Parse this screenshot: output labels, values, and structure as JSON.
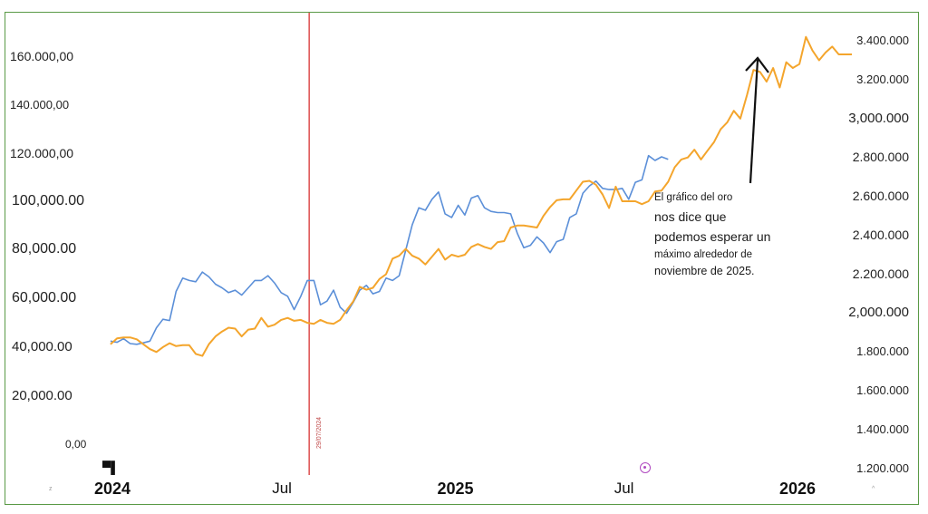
{
  "chart_data": {
    "type": "line",
    "annotation": [
      "El gráfico del oro",
      "nos dice que",
      "podemos esperar un",
      "máximo alrededor de",
      "noviembre de 2025."
    ],
    "marker_label": "29/07/2024",
    "marker_date": "2024-07-29",
    "x_ticks": [
      {
        "label": "2024",
        "date": "2024-01-01",
        "bold": true
      },
      {
        "label": "Jul",
        "date": "2024-07-01",
        "bold": false
      },
      {
        "label": "2025",
        "date": "2025-01-01",
        "bold": true
      },
      {
        "label": "Jul",
        "date": "2025-07-01",
        "bold": false
      },
      {
        "label": "2026",
        "date": "2026-01-01",
        "bold": true
      }
    ],
    "left_ticks": [
      {
        "label": "160.000,00",
        "value": 160000,
        "size": 14
      },
      {
        "label": "140.000,00",
        "value": 140000,
        "size": 13
      },
      {
        "label": "120.000,00",
        "value": 120000,
        "size": 14
      },
      {
        "label": "100,000.00",
        "value": 100000,
        "size": 16
      },
      {
        "label": "80,000.00",
        "value": 80000,
        "size": 16
      },
      {
        "label": "60,000.00",
        "value": 60000,
        "size": 16
      },
      {
        "label": "40,000.00",
        "value": 40000,
        "size": 15
      },
      {
        "label": "20,000.00",
        "value": 20000,
        "size": 15
      },
      {
        "label": "0,00",
        "value": 0,
        "size": 12
      }
    ],
    "right_ticks": [
      {
        "label": "3.400.000",
        "value": 3400000,
        "size": 13
      },
      {
        "label": "3.200.000",
        "value": 3200000,
        "size": 13
      },
      {
        "label": "3,000.000",
        "value": 3000000,
        "size": 15
      },
      {
        "label": "2.800.000",
        "value": 2800000,
        "size": 14
      },
      {
        "label": "2.600.000",
        "value": 2600000,
        "size": 14
      },
      {
        "label": "2.400.000",
        "value": 2400000,
        "size": 14
      },
      {
        "label": "2.200.000",
        "value": 2200000,
        "size": 14
      },
      {
        "label": "2,000.000",
        "value": 2000000,
        "size": 15
      },
      {
        "label": "1.800.000",
        "value": 1800000,
        "size": 13
      },
      {
        "label": "1.600.000",
        "value": 1600000,
        "size": 13
      },
      {
        "label": "1.400.000",
        "value": 1400000,
        "size": 13
      },
      {
        "label": "1.200.000",
        "value": 1200000,
        "size": 13
      }
    ],
    "series": [
      {
        "axis": "left",
        "color": "#5b8fd8",
        "points": [
          [
            "2023-12-30",
            42500
          ],
          [
            "2024-01-06",
            42000
          ],
          [
            "2024-01-13",
            43500
          ],
          [
            "2024-01-20",
            41500
          ],
          [
            "2024-01-27",
            41200
          ],
          [
            "2024-02-03",
            41800
          ],
          [
            "2024-02-10",
            42500
          ],
          [
            "2024-02-17",
            48000
          ],
          [
            "2024-02-24",
            51500
          ],
          [
            "2024-03-02",
            51000
          ],
          [
            "2024-03-09",
            63000
          ],
          [
            "2024-03-16",
            68500
          ],
          [
            "2024-03-23",
            67500
          ],
          [
            "2024-03-30",
            67000
          ],
          [
            "2024-04-06",
            71000
          ],
          [
            "2024-04-13",
            69000
          ],
          [
            "2024-04-20",
            66000
          ],
          [
            "2024-04-27",
            64500
          ],
          [
            "2024-05-04",
            62500
          ],
          [
            "2024-05-11",
            63500
          ],
          [
            "2024-05-18",
            61500
          ],
          [
            "2024-05-25",
            64500
          ],
          [
            "2024-06-01",
            67500
          ],
          [
            "2024-06-08",
            67500
          ],
          [
            "2024-06-15",
            69500
          ],
          [
            "2024-06-22",
            66500
          ],
          [
            "2024-06-29",
            62500
          ],
          [
            "2024-07-06",
            61000
          ],
          [
            "2024-07-13",
            55500
          ],
          [
            "2024-07-20",
            61000
          ],
          [
            "2024-07-27",
            67500
          ],
          [
            "2024-08-03",
            67500
          ],
          [
            "2024-08-10",
            57500
          ],
          [
            "2024-08-17",
            59000
          ],
          [
            "2024-08-24",
            63500
          ],
          [
            "2024-08-31",
            56500
          ],
          [
            "2024-09-07",
            54000
          ],
          [
            "2024-09-14",
            58500
          ],
          [
            "2024-09-21",
            63500
          ],
          [
            "2024-09-28",
            65500
          ],
          [
            "2024-10-05",
            62000
          ],
          [
            "2024-10-12",
            63000
          ],
          [
            "2024-10-19",
            68500
          ],
          [
            "2024-10-26",
            67500
          ],
          [
            "2024-11-02",
            69500
          ],
          [
            "2024-11-09",
            80000
          ],
          [
            "2024-11-16",
            90500
          ],
          [
            "2024-11-23",
            97500
          ],
          [
            "2024-11-30",
            96500
          ],
          [
            "2024-12-07",
            101000
          ],
          [
            "2024-12-14",
            104000
          ],
          [
            "2024-12-21",
            95000
          ],
          [
            "2024-12-28",
            93500
          ],
          [
            "2025-01-04",
            98500
          ],
          [
            "2025-01-11",
            94500
          ],
          [
            "2025-01-18",
            101500
          ],
          [
            "2025-01-25",
            102500
          ],
          [
            "2025-02-01",
            97500
          ],
          [
            "2025-02-08",
            96000
          ],
          [
            "2025-02-15",
            95500
          ],
          [
            "2025-02-22",
            95500
          ],
          [
            "2025-03-01",
            95000
          ],
          [
            "2025-03-08",
            87000
          ],
          [
            "2025-03-15",
            81000
          ],
          [
            "2025-03-22",
            82000
          ],
          [
            "2025-03-29",
            85500
          ],
          [
            "2025-04-05",
            83000
          ],
          [
            "2025-04-12",
            79000
          ],
          [
            "2025-04-19",
            83500
          ],
          [
            "2025-04-26",
            84500
          ],
          [
            "2025-05-03",
            93500
          ],
          [
            "2025-05-10",
            95000
          ],
          [
            "2025-05-17",
            103500
          ],
          [
            "2025-05-24",
            106500
          ],
          [
            "2025-05-31",
            108500
          ],
          [
            "2025-06-07",
            105500
          ],
          [
            "2025-06-14",
            105000
          ],
          [
            "2025-06-21",
            105000
          ],
          [
            "2025-06-28",
            105500
          ],
          [
            "2025-07-05",
            101000
          ],
          [
            "2025-07-12",
            108000
          ],
          [
            "2025-07-19",
            109000
          ],
          [
            "2025-07-26",
            119000
          ],
          [
            "2025-08-02",
            117000
          ],
          [
            "2025-08-09",
            118500
          ],
          [
            "2025-08-16",
            117500
          ]
        ]
      },
      {
        "axis": "right",
        "color": "#f4a52c",
        "points": [
          [
            "2023-12-30",
            1840000
          ],
          [
            "2024-01-06",
            1870000
          ],
          [
            "2024-01-13",
            1875000
          ],
          [
            "2024-01-20",
            1875000
          ],
          [
            "2024-01-27",
            1865000
          ],
          [
            "2024-02-03",
            1840000
          ],
          [
            "2024-02-10",
            1815000
          ],
          [
            "2024-02-17",
            1800000
          ],
          [
            "2024-02-24",
            1825000
          ],
          [
            "2024-03-02",
            1845000
          ],
          [
            "2024-03-09",
            1830000
          ],
          [
            "2024-03-16",
            1835000
          ],
          [
            "2024-03-23",
            1835000
          ],
          [
            "2024-03-30",
            1790000
          ],
          [
            "2024-04-06",
            1780000
          ],
          [
            "2024-04-13",
            1840000
          ],
          [
            "2024-04-20",
            1880000
          ],
          [
            "2024-04-27",
            1905000
          ],
          [
            "2024-05-04",
            1925000
          ],
          [
            "2024-05-11",
            1920000
          ],
          [
            "2024-05-18",
            1880000
          ],
          [
            "2024-05-25",
            1915000
          ],
          [
            "2024-06-01",
            1920000
          ],
          [
            "2024-06-08",
            1975000
          ],
          [
            "2024-06-15",
            1930000
          ],
          [
            "2024-06-22",
            1940000
          ],
          [
            "2024-06-29",
            1965000
          ],
          [
            "2024-07-06",
            1975000
          ],
          [
            "2024-07-13",
            1960000
          ],
          [
            "2024-07-20",
            1965000
          ],
          [
            "2024-07-27",
            1950000
          ],
          [
            "2024-08-03",
            1945000
          ],
          [
            "2024-08-10",
            1965000
          ],
          [
            "2024-08-17",
            1950000
          ],
          [
            "2024-08-24",
            1945000
          ],
          [
            "2024-08-31",
            1965000
          ],
          [
            "2024-09-07",
            2015000
          ],
          [
            "2024-09-14",
            2060000
          ],
          [
            "2024-09-21",
            2135000
          ],
          [
            "2024-09-28",
            2120000
          ],
          [
            "2024-10-05",
            2130000
          ],
          [
            "2024-10-12",
            2175000
          ],
          [
            "2024-10-19",
            2200000
          ],
          [
            "2024-10-26",
            2280000
          ],
          [
            "2024-11-02",
            2295000
          ],
          [
            "2024-11-09",
            2330000
          ],
          [
            "2024-11-16",
            2295000
          ],
          [
            "2024-11-23",
            2280000
          ],
          [
            "2024-11-30",
            2250000
          ],
          [
            "2024-12-07",
            2290000
          ],
          [
            "2024-12-14",
            2330000
          ],
          [
            "2024-12-21",
            2275000
          ],
          [
            "2024-12-28",
            2300000
          ],
          [
            "2025-01-04",
            2290000
          ],
          [
            "2025-01-11",
            2300000
          ],
          [
            "2025-01-18",
            2340000
          ],
          [
            "2025-01-25",
            2355000
          ],
          [
            "2025-02-01",
            2340000
          ],
          [
            "2025-02-08",
            2330000
          ],
          [
            "2025-02-15",
            2365000
          ],
          [
            "2025-02-22",
            2370000
          ],
          [
            "2025-03-01",
            2440000
          ],
          [
            "2025-03-08",
            2450000
          ],
          [
            "2025-03-15",
            2450000
          ],
          [
            "2025-03-22",
            2445000
          ],
          [
            "2025-03-29",
            2440000
          ],
          [
            "2025-04-05",
            2500000
          ],
          [
            "2025-04-12",
            2545000
          ],
          [
            "2025-04-19",
            2580000
          ],
          [
            "2025-04-26",
            2585000
          ],
          [
            "2025-05-03",
            2585000
          ],
          [
            "2025-05-10",
            2630000
          ],
          [
            "2025-05-17",
            2675000
          ],
          [
            "2025-05-24",
            2680000
          ],
          [
            "2025-05-31",
            2660000
          ],
          [
            "2025-06-07",
            2610000
          ],
          [
            "2025-06-14",
            2540000
          ],
          [
            "2025-06-21",
            2650000
          ],
          [
            "2025-06-28",
            2575000
          ],
          [
            "2025-07-05",
            2575000
          ],
          [
            "2025-07-12",
            2575000
          ],
          [
            "2025-07-19",
            2560000
          ],
          [
            "2025-07-26",
            2575000
          ],
          [
            "2025-08-02",
            2625000
          ],
          [
            "2025-08-09",
            2630000
          ],
          [
            "2025-08-16",
            2675000
          ],
          [
            "2025-08-23",
            2750000
          ],
          [
            "2025-08-30",
            2790000
          ],
          [
            "2025-09-06",
            2800000
          ],
          [
            "2025-09-13",
            2840000
          ],
          [
            "2025-09-20",
            2790000
          ],
          [
            "2025-09-27",
            2835000
          ],
          [
            "2025-10-04",
            2880000
          ],
          [
            "2025-10-11",
            2945000
          ],
          [
            "2025-10-18",
            2980000
          ],
          [
            "2025-10-25",
            3040000
          ],
          [
            "2025-11-01",
            3000000
          ],
          [
            "2025-11-08",
            3120000
          ],
          [
            "2025-11-15",
            3250000
          ],
          [
            "2025-11-22",
            3240000
          ],
          [
            "2025-11-29",
            3190000
          ],
          [
            "2025-12-06",
            3260000
          ],
          [
            "2025-12-13",
            3160000
          ],
          [
            "2025-12-20",
            3290000
          ],
          [
            "2025-12-27",
            3260000
          ],
          [
            "2026-01-03",
            3280000
          ],
          [
            "2026-01-10",
            3420000
          ],
          [
            "2026-01-17",
            3350000
          ],
          [
            "2026-01-24",
            3300000
          ],
          [
            "2026-01-31",
            3340000
          ],
          [
            "2026-02-07",
            3370000
          ],
          [
            "2026-02-14",
            3330000
          ],
          [
            "2026-02-21",
            3330000
          ],
          [
            "2026-02-28",
            3330000
          ]
        ]
      }
    ]
  }
}
